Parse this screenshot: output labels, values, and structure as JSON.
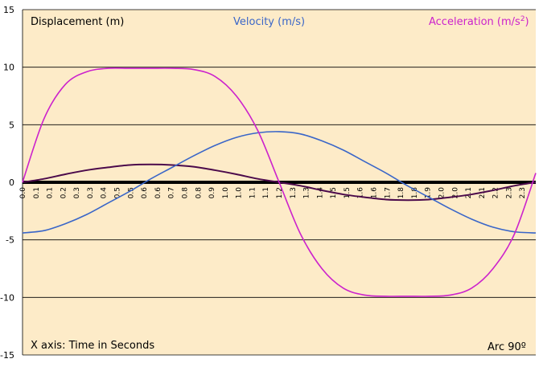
{
  "chart_data": {
    "type": "line",
    "legend": {
      "displacement": "Displacement (m)",
      "velocity": "Velocity (m/s)",
      "acceleration_main": "Acceleration (m/s",
      "acceleration_sup": "2",
      "acceleration_end": ")"
    },
    "annotations": {
      "x_axis_note": "X axis: Time in Seconds",
      "arc_note": "Arc  90º"
    },
    "ylim": [
      -15,
      15
    ],
    "yticks": [
      -15,
      -10,
      -5,
      0,
      5,
      10,
      15
    ],
    "x_range": [
      0.0,
      2.4
    ],
    "x_tick_labels": [
      "0.0",
      "0.1",
      "0.1",
      "0.2",
      "0.3",
      "0.3",
      "0.4",
      "0.5",
      "0.5",
      "0.6",
      "0.6",
      "0.7",
      "0.8",
      "0.8",
      "0.9",
      "1.0",
      "1.0",
      "1.1",
      "1.1",
      "1.2",
      "1.3",
      "1.3",
      "1.4",
      "1.5",
      "1.5",
      "1.6",
      "1.6",
      "1.7",
      "1.8",
      "1.8",
      "1.9",
      "2.0",
      "2.0",
      "2.1",
      "2.1",
      "2.2",
      "2.3",
      "2.3"
    ],
    "grid": true,
    "colors": {
      "displacement": "#4b0a4b",
      "velocity": "#3a66c8",
      "acceleration": "#cc22cc",
      "background": "#fdebc8",
      "zero_line": "#000000"
    },
    "series": [
      {
        "name": "Displacement (m)",
        "x": [
          0.0,
          0.1,
          0.2,
          0.3,
          0.4,
          0.5,
          0.6,
          0.7,
          0.8,
          0.9,
          1.0,
          1.1,
          1.2,
          1.3,
          1.4,
          1.5,
          1.6,
          1.7,
          1.8,
          1.9,
          2.0,
          2.1,
          2.2,
          2.3,
          2.4
        ],
        "values": [
          0.0,
          0.3,
          0.7,
          1.05,
          1.3,
          1.5,
          1.55,
          1.5,
          1.35,
          1.05,
          0.7,
          0.3,
          0.0,
          -0.3,
          -0.7,
          -1.05,
          -1.3,
          -1.5,
          -1.55,
          -1.5,
          -1.3,
          -1.05,
          -0.7,
          -0.3,
          0.0
        ]
      },
      {
        "name": "Velocity (m/s)",
        "x": [
          0.0,
          0.1,
          0.2,
          0.3,
          0.4,
          0.5,
          0.6,
          0.7,
          0.8,
          0.9,
          1.0,
          1.1,
          1.2,
          1.3,
          1.4,
          1.5,
          1.6,
          1.7,
          1.8,
          1.9,
          2.0,
          2.1,
          2.2,
          2.3,
          2.4
        ],
        "values": [
          -4.4,
          -4.2,
          -3.6,
          -2.8,
          -1.8,
          -0.8,
          0.3,
          1.3,
          2.3,
          3.2,
          3.9,
          4.3,
          4.4,
          4.2,
          3.6,
          2.8,
          1.8,
          0.8,
          -0.3,
          -1.3,
          -2.3,
          -3.2,
          -3.9,
          -4.3,
          -4.4
        ]
      },
      {
        "name": "Acceleration (m/s2)",
        "x": [
          0.0,
          0.1,
          0.2,
          0.3,
          0.4,
          0.5,
          0.6,
          0.7,
          0.8,
          0.9,
          1.0,
          1.1,
          1.2,
          1.3,
          1.4,
          1.5,
          1.6,
          1.7,
          1.8,
          1.9,
          2.0,
          2.1,
          2.2,
          2.3,
          2.4
        ],
        "values": [
          0.0,
          5.5,
          8.5,
          9.6,
          9.9,
          9.9,
          9.9,
          9.9,
          9.8,
          9.2,
          7.5,
          4.5,
          0.0,
          -4.5,
          -7.5,
          -9.2,
          -9.8,
          -9.9,
          -9.9,
          -9.9,
          -9.8,
          -9.2,
          -7.5,
          -4.5,
          0.8
        ]
      }
    ]
  }
}
